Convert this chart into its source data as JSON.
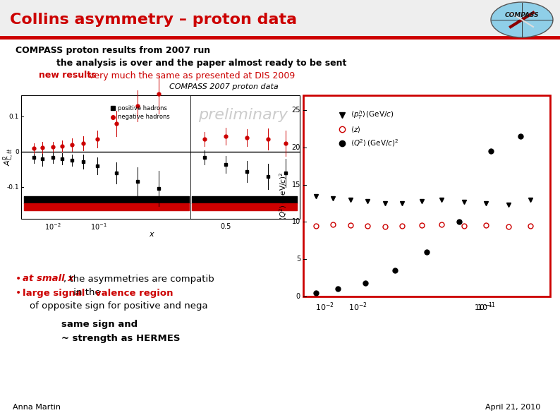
{
  "title": "Collins asymmetry – proton data",
  "title_color": "#cc0000",
  "line1": "COMPASS proton results from 2007 run",
  "line2": "the analysis is over and the paper almost ready to be sent",
  "line3_red": "new results",
  "line3_rest": " very much the same as presented at DIS 2009",
  "bullet1_red": "at small x",
  "bullet1_rest": ", the asymmetries are compatib",
  "bullet2_red": "large signal",
  "bullet2_mid": " in the ",
  "bullet2_red2": "valence region",
  "line_below_b2": "of opposite sign for positive and nega",
  "line_same": "same sign and",
  "line_strength": "~ strength as HERMES",
  "author": "Anna Martin",
  "date": "April 21, 2010",
  "bg_color": "#ffffff",
  "header_red_line_color": "#cc0000",
  "header_bg": "#f0f0f0",
  "plot_image_label": "COMPASS 2007 proton data",
  "preliminary_text": "preliminary",
  "positive_hadrons": "positive hadrons",
  "negative_hadrons": "negative hadrons"
}
